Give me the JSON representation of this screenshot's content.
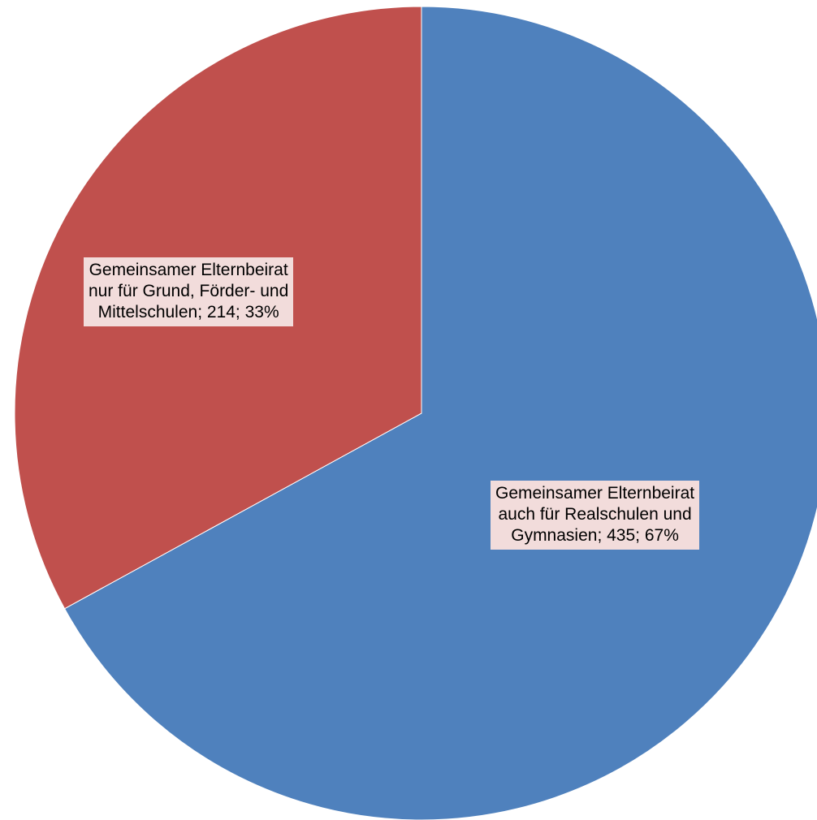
{
  "chart_data": {
    "type": "pie",
    "title": "",
    "slices": [
      {
        "label_lines": [
          "Gemeinsamer Elternbeirat",
          "auch für Realschulen und",
          "Gymnasien;"
        ],
        "value": 435,
        "percent": "67%",
        "color": "#4f81bd"
      },
      {
        "label_lines": [
          "Gemeinsamer Elternbeirat",
          "nur für Grund, Förder- und",
          "Mittelschulen;"
        ],
        "value": 214,
        "percent": "33%",
        "color": "#c0504d"
      }
    ],
    "start_angle_deg": 0,
    "direction": "clockwise",
    "legend": "none",
    "data_label_background": "#f2dcdb"
  }
}
